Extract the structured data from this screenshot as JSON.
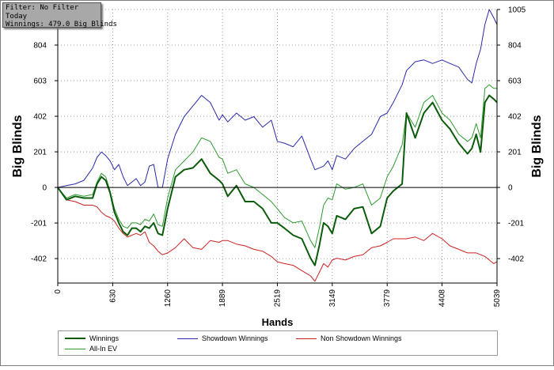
{
  "filter_box": {
    "line1": "Filter: No Filter",
    "line2": "Today",
    "line3": "Winnings: 479.0 Big Blinds"
  },
  "chart_data": {
    "type": "line",
    "title": "",
    "xlabel": "Hands",
    "ylabel_left": "Big Blinds",
    "ylabel_right": "Big Blinds",
    "xlim": [
      0,
      5039
    ],
    "ylim": [
      -540,
      1005
    ],
    "x_ticks": [
      0,
      630,
      1260,
      1889,
      2519,
      3149,
      3779,
      4408,
      5039
    ],
    "y_ticks": [
      -402,
      -201,
      0,
      201,
      402,
      603,
      804,
      1005
    ],
    "grid": true,
    "legend_position": "bottom",
    "colors": {
      "Winnings": "#0a5c0a",
      "All-In EV": "#2f9a2f",
      "Showdown Winnings": "#2a2aaa",
      "Non Showdown Winnings": "#cc2222",
      "zero_line": "#000000",
      "grid": "#888888"
    },
    "series": [
      {
        "name": "Winnings",
        "x": [
          0,
          100,
          200,
          300,
          400,
          450,
          500,
          550,
          600,
          650,
          700,
          750,
          800,
          850,
          900,
          950,
          1000,
          1050,
          1100,
          1150,
          1200,
          1260,
          1350,
          1450,
          1550,
          1650,
          1750,
          1850,
          1889,
          1950,
          2050,
          2150,
          2250,
          2350,
          2450,
          2519,
          2600,
          2700,
          2800,
          2900,
          2950,
          3000,
          3050,
          3100,
          3149,
          3200,
          3300,
          3400,
          3500,
          3600,
          3700,
          3779,
          3850,
          3950,
          4000,
          4100,
          4200,
          4300,
          4408,
          4500,
          4600,
          4700,
          4750,
          4800,
          4850,
          4900,
          4950,
          5000,
          5039
        ],
        "y": [
          0,
          -70,
          -50,
          -60,
          -60,
          20,
          60,
          40,
          -30,
          -140,
          -200,
          -250,
          -270,
          -230,
          -230,
          -250,
          -220,
          -230,
          -200,
          -260,
          -270,
          -120,
          60,
          100,
          110,
          160,
          80,
          40,
          20,
          -50,
          10,
          -80,
          -80,
          -120,
          -200,
          -200,
          -230,
          -270,
          -290,
          -400,
          -440,
          -330,
          -200,
          -220,
          -260,
          -160,
          -180,
          -120,
          -110,
          -260,
          -220,
          -60,
          -20,
          20,
          420,
          280,
          420,
          480,
          380,
          330,
          250,
          190,
          220,
          300,
          200,
          480,
          520,
          500,
          480
        ]
      },
      {
        "name": "All-In EV",
        "x": [
          0,
          100,
          200,
          300,
          400,
          450,
          500,
          550,
          600,
          650,
          700,
          750,
          800,
          850,
          900,
          950,
          1000,
          1050,
          1100,
          1150,
          1200,
          1260,
          1350,
          1450,
          1550,
          1650,
          1750,
          1850,
          1889,
          1950,
          2050,
          2150,
          2250,
          2350,
          2450,
          2519,
          2600,
          2700,
          2800,
          2900,
          2950,
          3000,
          3050,
          3100,
          3149,
          3200,
          3300,
          3400,
          3500,
          3600,
          3700,
          3779,
          3850,
          3950,
          4000,
          4100,
          4200,
          4300,
          4408,
          4500,
          4600,
          4700,
          4750,
          4800,
          4850,
          4900,
          4950,
          5000,
          5039
        ],
        "y": [
          0,
          -60,
          -40,
          -50,
          -40,
          30,
          80,
          60,
          -20,
          -120,
          -180,
          -220,
          -230,
          -200,
          -200,
          -210,
          -180,
          -190,
          -150,
          -210,
          -220,
          -60,
          100,
          150,
          200,
          280,
          260,
          170,
          160,
          80,
          100,
          20,
          0,
          -40,
          -80,
          -120,
          -170,
          -200,
          -190,
          -300,
          -340,
          -230,
          -100,
          -60,
          -70,
          20,
          -10,
          0,
          20,
          -100,
          -60,
          60,
          120,
          240,
          420,
          340,
          480,
          520,
          420,
          380,
          300,
          260,
          280,
          360,
          280,
          560,
          580,
          560,
          560
        ]
      },
      {
        "name": "Showdown Winnings",
        "x": [
          0,
          100,
          200,
          300,
          400,
          450,
          500,
          550,
          600,
          650,
          700,
          750,
          800,
          850,
          900,
          950,
          1000,
          1050,
          1100,
          1150,
          1200,
          1260,
          1350,
          1450,
          1550,
          1650,
          1750,
          1850,
          1889,
          1950,
          2050,
          2150,
          2250,
          2350,
          2450,
          2519,
          2600,
          2700,
          2800,
          2900,
          2950,
          3000,
          3050,
          3100,
          3149,
          3200,
          3300,
          3400,
          3500,
          3600,
          3700,
          3779,
          3850,
          3950,
          4000,
          4100,
          4200,
          4300,
          4408,
          4500,
          4600,
          4700,
          4750,
          4800,
          4850,
          4900,
          4950,
          5000,
          5039
        ],
        "y": [
          0,
          10,
          20,
          40,
          110,
          170,
          200,
          180,
          150,
          100,
          130,
          60,
          10,
          30,
          50,
          10,
          30,
          120,
          130,
          0,
          0,
          160,
          300,
          400,
          460,
          520,
          480,
          380,
          410,
          370,
          420,
          380,
          400,
          340,
          380,
          260,
          250,
          230,
          290,
          160,
          100,
          110,
          120,
          150,
          100,
          180,
          160,
          220,
          260,
          300,
          400,
          420,
          480,
          580,
          660,
          710,
          720,
          700,
          720,
          700,
          680,
          610,
          590,
          700,
          780,
          920,
          1005,
          960,
          920
        ]
      },
      {
        "name": "Non Showdown Winnings",
        "x": [
          0,
          100,
          200,
          300,
          400,
          450,
          500,
          550,
          600,
          650,
          700,
          750,
          800,
          850,
          900,
          950,
          1000,
          1050,
          1100,
          1150,
          1200,
          1260,
          1350,
          1450,
          1550,
          1650,
          1750,
          1850,
          1889,
          1950,
          2050,
          2150,
          2250,
          2350,
          2450,
          2519,
          2600,
          2700,
          2800,
          2900,
          2950,
          3000,
          3050,
          3100,
          3149,
          3200,
          3300,
          3400,
          3500,
          3600,
          3700,
          3779,
          3850,
          3950,
          4000,
          4100,
          4200,
          4300,
          4408,
          4500,
          4600,
          4700,
          4750,
          4800,
          4850,
          4900,
          4950,
          5000,
          5039
        ],
        "y": [
          0,
          -70,
          -80,
          -100,
          -100,
          -110,
          -140,
          -160,
          -170,
          -190,
          -230,
          -260,
          -280,
          -270,
          -260,
          -270,
          -250,
          -310,
          -330,
          -360,
          -380,
          -370,
          -340,
          -290,
          -340,
          -350,
          -300,
          -310,
          -300,
          -300,
          -320,
          -330,
          -350,
          -360,
          -390,
          -420,
          -430,
          -440,
          -470,
          -500,
          -530,
          -480,
          -430,
          -450,
          -410,
          -400,
          -410,
          -390,
          -380,
          -340,
          -330,
          -310,
          -290,
          -290,
          -290,
          -280,
          -300,
          -260,
          -290,
          -330,
          -350,
          -370,
          -370,
          -370,
          -380,
          -390,
          -410,
          -430,
          -420
        ]
      }
    ]
  }
}
